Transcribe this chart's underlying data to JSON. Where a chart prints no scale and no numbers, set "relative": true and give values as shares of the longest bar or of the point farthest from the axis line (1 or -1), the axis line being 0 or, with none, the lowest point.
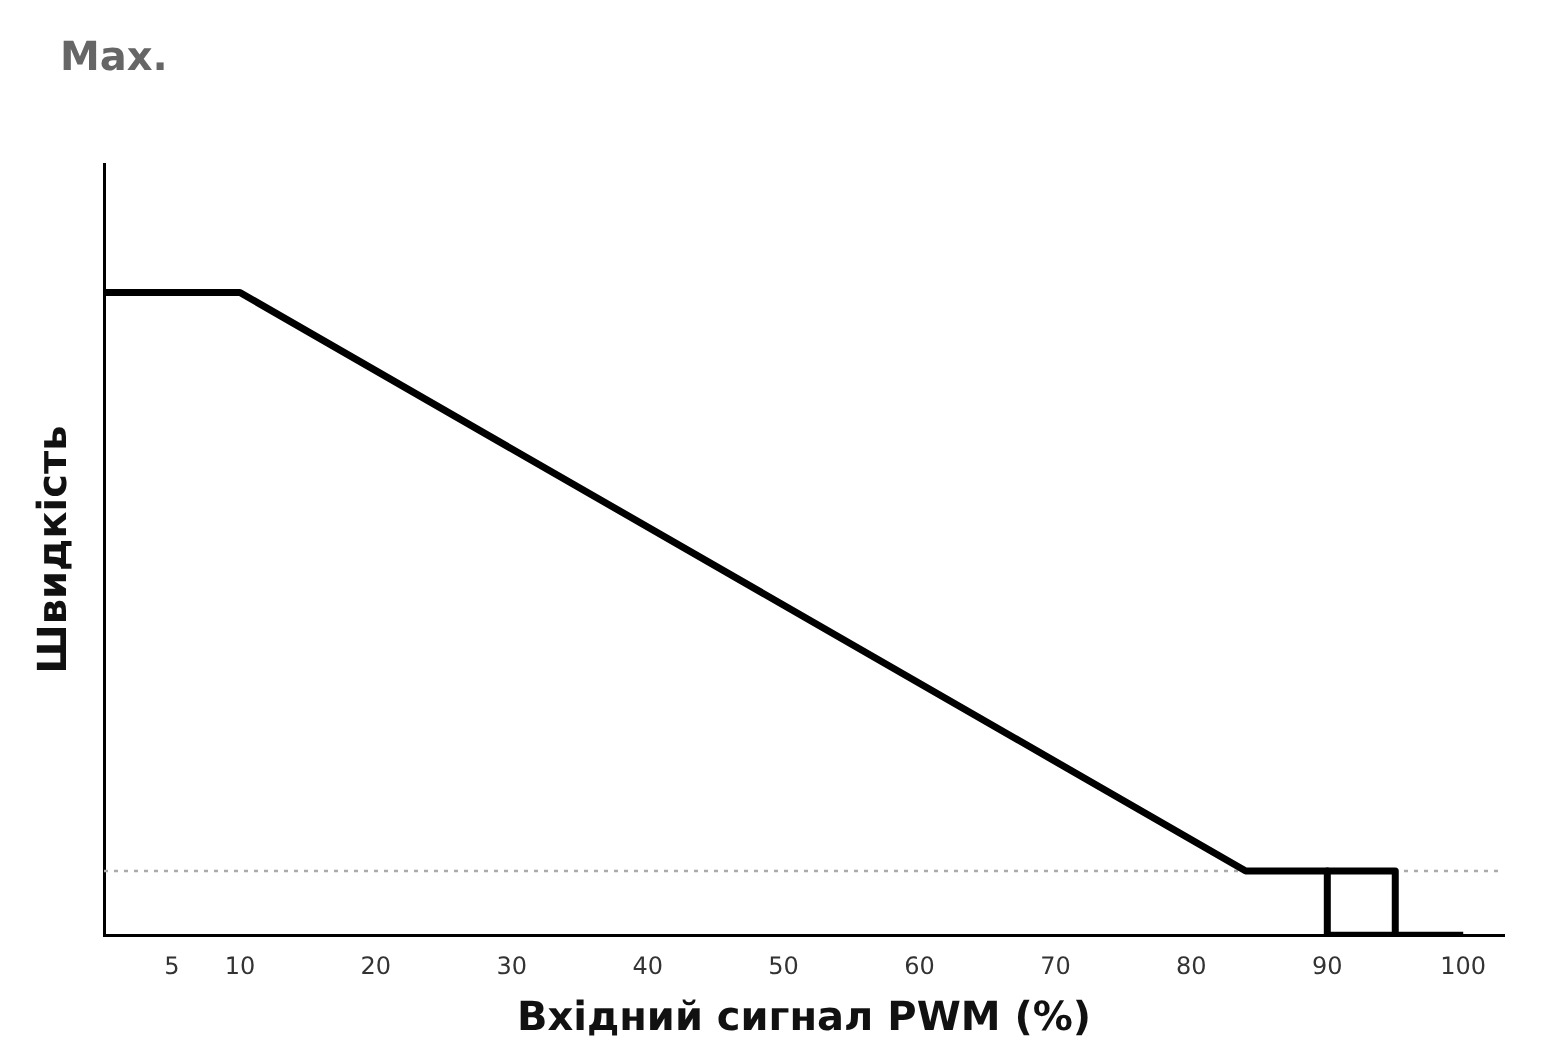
{
  "chart_data": {
    "type": "line",
    "relative": true,
    "annotations": [
      "Max."
    ],
    "xlabel": "Вхідний сигнал PWM (%)",
    "ylabel": "Швидкість",
    "xlim": [
      0,
      103
    ],
    "xticks": [
      5,
      10,
      20,
      30,
      40,
      50,
      60,
      70,
      80,
      90,
      100
    ],
    "series": [
      {
        "color": "#000000",
        "x": [
          0,
          10,
          84,
          95,
          95,
          100
        ],
        "values": [
          1,
          1,
          0.1,
          0.1,
          0,
          0
        ]
      },
      {
        "color": "#000000",
        "x": [
          90,
          90,
          95
        ],
        "values": [
          0.1,
          0,
          0
        ]
      }
    ],
    "ref_lines": [
      {
        "axis": "y",
        "value": 0.1,
        "color": "#aaaaaa",
        "line_style": "dotted"
      }
    ],
    "grid": false,
    "legend": false,
    "marker": "none",
    "line_style": "solid"
  }
}
